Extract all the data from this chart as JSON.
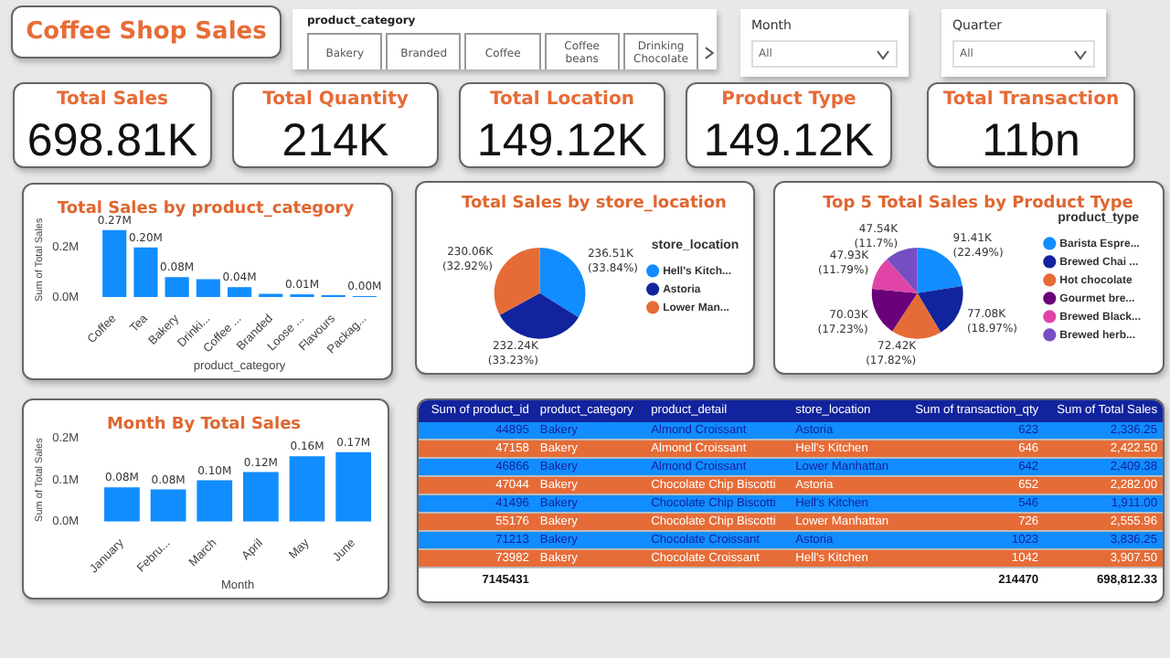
{
  "chart_data": [
    {
      "type": "other",
      "title": "Coffee Shop Sales"
    },
    {
      "type": "other",
      "title": "product_category",
      "categories": [
        "Bakery",
        "Branded",
        "Coffee",
        "Coffee beans",
        "Drinking Chocolate"
      ]
    },
    {
      "type": "other",
      "title": "Month",
      "annotations": [
        "All"
      ]
    },
    {
      "type": "other",
      "title": "Quarter",
      "annotations": [
        "All"
      ]
    },
    {
      "type": "other",
      "title": "Total Sales",
      "annotations": [
        "698.81K"
      ]
    },
    {
      "type": "other",
      "title": "Total Quantity",
      "annotations": [
        "214K"
      ]
    },
    {
      "type": "other",
      "title": "Total Location",
      "annotations": [
        "149.12K"
      ]
    },
    {
      "type": "other",
      "title": "Product Type",
      "annotations": [
        "149.12K"
      ]
    },
    {
      "type": "other",
      "title": "Total Transaction",
      "annotations": [
        "11bn"
      ]
    },
    {
      "type": "bar",
      "title": "Total Sales by product_category",
      "xlabel": "product_category",
      "ylabel": "Sum of Total Sales",
      "categories": [
        "Coffee",
        "Tea",
        "Bakery",
        "Drinki...",
        "Coffee ...",
        "Branded",
        "Loose ...",
        "Flavours",
        "Packag..."
      ],
      "values": [
        0.27,
        0.2,
        0.08,
        0.072,
        0.04,
        0.013,
        0.011,
        0.008,
        0.004
      ],
      "color": "#118dff",
      "value_labels": [
        "0.27M",
        "0.20M",
        "0.08M",
        null,
        "0.04M",
        null,
        "0.01M",
        null,
        "0.00M"
      ],
      "ylim": [
        0,
        0.3
      ],
      "yticks": [
        {
          "value": 0,
          "label": "0.0M"
        },
        {
          "value": 0.2,
          "label": "0.2M"
        }
      ]
    },
    {
      "type": "pie",
      "title": "Total Sales by store_location",
      "legend_title": "store_location",
      "legend": "right",
      "categories": [
        "Hell's Kitch...",
        "Astoria",
        "Lower Man..."
      ],
      "values": [
        33.84,
        33.23,
        32.92
      ],
      "colors": [
        "#118dff",
        "#12239e",
        "#e66c37"
      ],
      "value_labels": [
        "236.51K (33.84%)",
        "232.24K (33.23%)",
        "230.06K (32.92%)"
      ]
    },
    {
      "type": "pie",
      "title": "Top 5 Total Sales by Product Type",
      "legend_title": "product_type",
      "legend": "right",
      "categories": [
        "Barista Espre...",
        "Brewed Chai ...",
        "Hot chocolate",
        "Gourmet bre...",
        "Brewed Black...",
        "Brewed herb..."
      ],
      "values": [
        22.49,
        18.97,
        17.82,
        17.23,
        11.79,
        11.7
      ],
      "colors": [
        "#118dff",
        "#12239e",
        "#e66c37",
        "#6b007b",
        "#e044a7",
        "#744ec2"
      ],
      "value_labels": [
        "91.41K (22.49%)",
        "77.08K (18.97%)",
        "72.42K (17.82%)",
        "70.03K (17.23%)",
        "47.93K (11.79%)",
        "47.54K (11.7%)"
      ]
    },
    {
      "type": "bar",
      "title": "Month By Total Sales",
      "xlabel": "Month",
      "ylabel": "Sum of Total Sales",
      "categories": [
        "January",
        "Febru...",
        "March",
        "April",
        "May",
        "June"
      ],
      "values": [
        0.082,
        0.077,
        0.099,
        0.119,
        0.157,
        0.167
      ],
      "color": "#118dff",
      "value_labels": [
        "0.08M",
        "0.08M",
        "0.10M",
        "0.12M",
        "0.16M",
        "0.17M"
      ],
      "ylim": [
        0,
        0.2
      ],
      "yticks": [
        {
          "value": 0,
          "label": "0.0M"
        },
        {
          "value": 0.1,
          "label": "0.1M"
        },
        {
          "value": 0.2,
          "label": "0.2M"
        }
      ]
    },
    {
      "type": "other",
      "categories": [
        "Sum of product_id",
        "product_category",
        "product_detail",
        "store_location",
        "Sum of transaction_qty",
        "Sum of Total Sales"
      ],
      "cells": [
        [
          "44895",
          "Bakery",
          "Almond Croissant",
          "Astoria",
          "623",
          "2,336.25"
        ],
        [
          "47158",
          "Bakery",
          "Almond Croissant",
          "Hell's Kitchen",
          "646",
          "2,422.50"
        ],
        [
          "46866",
          "Bakery",
          "Almond Croissant",
          "Lower Manhattan",
          "642",
          "2,409.38"
        ],
        [
          "47044",
          "Bakery",
          "Chocolate Chip Biscotti",
          "Astoria",
          "652",
          "2,282.00"
        ],
        [
          "41496",
          "Bakery",
          "Chocolate Chip Biscotti",
          "Hell's Kitchen",
          "546",
          "1,911.00"
        ],
        [
          "55176",
          "Bakery",
          "Chocolate Chip Biscotti",
          "Lower Manhattan",
          "726",
          "2,555.96"
        ],
        [
          "71213",
          "Bakery",
          "Chocolate Croissant",
          "Astoria",
          "1023",
          "3,836.25"
        ],
        [
          "73982",
          "Bakery",
          "Chocolate Croissant",
          "Hell's Kitchen",
          "1042",
          "3,907.50"
        ]
      ],
      "totals": [
        "7145431",
        null,
        null,
        null,
        "214470",
        "698,812.33"
      ]
    }
  ]
}
